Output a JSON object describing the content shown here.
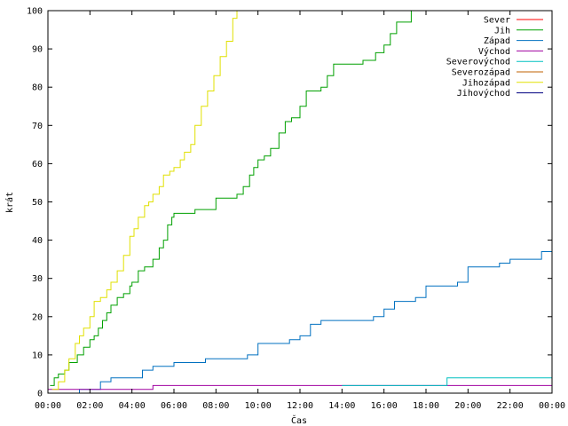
{
  "chart_data": {
    "type": "line",
    "title": "",
    "xlabel": "Čas",
    "ylabel": "krát",
    "xlim": [
      0,
      24
    ],
    "ylim": [
      0,
      100
    ],
    "x_ticks": [
      "00:00",
      "02:00",
      "04:00",
      "06:00",
      "08:00",
      "10:00",
      "12:00",
      "14:00",
      "16:00",
      "18:00",
      "20:00",
      "22:00",
      "00:00"
    ],
    "y_ticks": [
      0,
      10,
      20,
      30,
      40,
      50,
      60,
      70,
      80,
      90,
      100
    ],
    "grid": false,
    "legend_position": "top-right",
    "series": [
      {
        "name": "Sever",
        "color": "#ff0000",
        "x": [],
        "y": []
      },
      {
        "name": "Jih",
        "color": "#00a000",
        "x": [
          0.1,
          0.3,
          0.5,
          0.8,
          1.0,
          1.4,
          1.7,
          2.0,
          2.2,
          2.4,
          2.6,
          2.8,
          3.0,
          3.3,
          3.6,
          3.9,
          4.0,
          4.3,
          4.6,
          5.0,
          5.3,
          5.5,
          5.7,
          5.9,
          6.0,
          6.3,
          6.6,
          7.0,
          7.5,
          8.0,
          8.5,
          9.0,
          9.3,
          9.6,
          9.8,
          10.0,
          10.3,
          10.6,
          11.0,
          11.3,
          11.6,
          12.0,
          12.3,
          12.6,
          13.0,
          13.3,
          13.6,
          14.0,
          14.3,
          15.0,
          15.6,
          16.0,
          16.3,
          16.6,
          16.9,
          17.3,
          17.6
        ],
        "y": [
          2,
          4,
          5,
          6,
          8,
          10,
          12,
          14,
          15,
          17,
          19,
          21,
          23,
          25,
          26,
          28,
          29,
          32,
          33,
          35,
          38,
          40,
          44,
          46,
          47,
          47,
          47,
          48,
          48,
          51,
          51,
          52,
          54,
          57,
          59,
          61,
          62,
          64,
          68,
          71,
          72,
          75,
          79,
          79,
          80,
          83,
          86,
          86,
          86,
          87,
          89,
          91,
          94,
          97,
          97,
          100,
          100
        ]
      },
      {
        "name": "Západ",
        "color": "#0070c0",
        "x": [
          0.0,
          0.5,
          1.0,
          1.5,
          2.0,
          2.5,
          3.0,
          3.5,
          4.0,
          4.5,
          5.0,
          5.5,
          6.0,
          6.5,
          7.0,
          7.5,
          8.0,
          8.5,
          9.0,
          9.5,
          10.0,
          10.5,
          11.0,
          11.5,
          12.0,
          12.5,
          13.0,
          13.5,
          14.0,
          14.5,
          15.0,
          15.5,
          16.0,
          16.5,
          17.0,
          17.5,
          18.0,
          18.5,
          19.0,
          19.5,
          20.0,
          20.5,
          21.0,
          21.5,
          22.0,
          22.5,
          23.0,
          23.5,
          24.0
        ],
        "y": [
          0,
          0,
          0,
          1,
          1,
          3,
          4,
          4,
          4,
          6,
          7,
          7,
          8,
          8,
          8,
          9,
          9,
          9,
          9,
          10,
          13,
          13,
          13,
          14,
          15,
          18,
          19,
          19,
          19,
          19,
          19,
          20,
          22,
          24,
          24,
          25,
          28,
          28,
          28,
          29,
          33,
          33,
          33,
          34,
          35,
          35,
          35,
          37,
          37
        ]
      },
      {
        "name": "Východ",
        "color": "#a000a0",
        "x": [
          0.0,
          1.0,
          2.0,
          3.0,
          4.0,
          5.0,
          6.0,
          7.0,
          8.0,
          9.0,
          10.0,
          11.0,
          12.0,
          13.0,
          14.0,
          15.0,
          16.0,
          17.0,
          18.0,
          19.0,
          20.0,
          21.0,
          22.0,
          23.0,
          24.0
        ],
        "y": [
          1,
          1,
          1,
          1,
          1,
          2,
          2,
          2,
          2,
          2,
          2,
          2,
          2,
          2,
          2,
          2,
          2,
          2,
          2,
          2,
          2,
          2,
          2,
          2,
          2
        ]
      },
      {
        "name": "Severovýchod",
        "color": "#00c0c0",
        "x": [
          14.0,
          15.0,
          16.0,
          17.0,
          18.0,
          18.7,
          19.0,
          20.0,
          21.0,
          22.0,
          23.0,
          24.0
        ],
        "y": [
          2,
          2,
          2,
          2,
          2,
          2,
          4,
          4,
          4,
          4,
          4,
          4
        ]
      },
      {
        "name": "Severozápad",
        "color": "#c06000",
        "x": [],
        "y": []
      },
      {
        "name": "Jihozápad",
        "color": "#e0e000",
        "x": [
          0.2,
          0.5,
          0.8,
          1.0,
          1.3,
          1.5,
          1.7,
          2.0,
          2.2,
          2.5,
          2.8,
          3.0,
          3.3,
          3.6,
          3.9,
          4.1,
          4.3,
          4.6,
          4.8,
          5.0,
          5.3,
          5.5,
          5.8,
          6.0,
          6.3,
          6.5,
          6.8,
          7.0,
          7.3,
          7.6,
          7.9,
          8.2,
          8.5,
          8.8,
          9.0
        ],
        "y": [
          1,
          3,
          6,
          9,
          13,
          15,
          17,
          20,
          24,
          25,
          27,
          29,
          32,
          36,
          41,
          43,
          46,
          49,
          50,
          52,
          54,
          57,
          58,
          59,
          61,
          63,
          65,
          70,
          75,
          79,
          83,
          88,
          92,
          98,
          100
        ]
      },
      {
        "name": "Jihovýchod",
        "color": "#000080",
        "x": [],
        "y": []
      }
    ]
  }
}
